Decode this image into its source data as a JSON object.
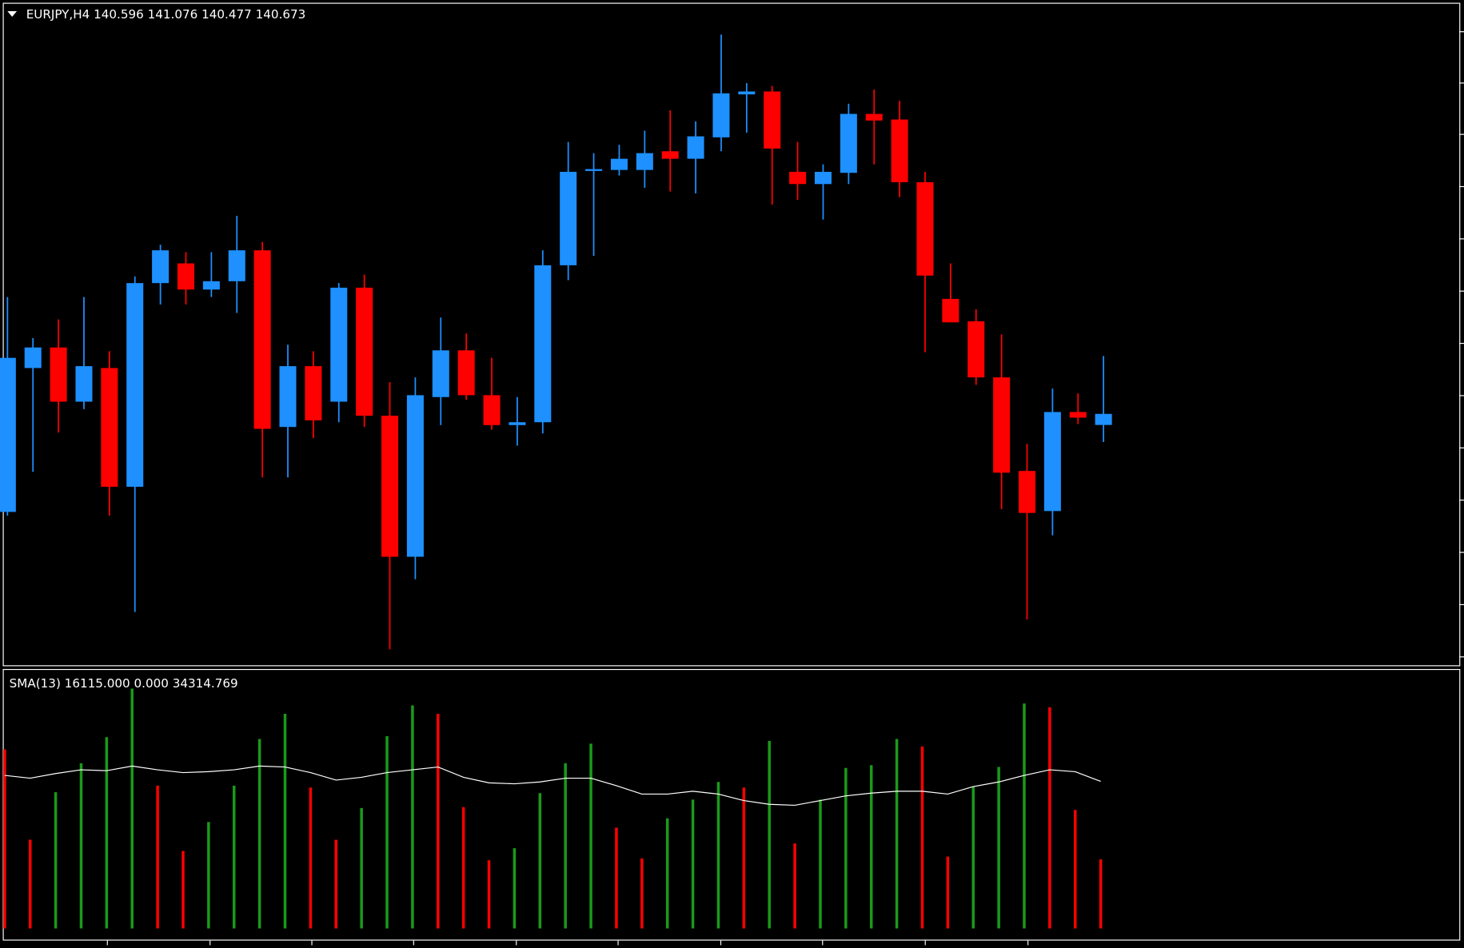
{
  "chart_data": [
    {
      "type": "candlestick",
      "title": "EURJPY,H4 140.596 141.076 140.477 140.673",
      "open": [
        139.991,
        140.992,
        141.135,
        140.758,
        140.992,
        140.166,
        141.583,
        141.72,
        141.538,
        141.596,
        141.811,
        140.582,
        141.005,
        140.758,
        141.551,
        140.66,
        139.679,
        140.79,
        141.115,
        140.803,
        140.595,
        140.615,
        141.707,
        142.363,
        142.37,
        142.37,
        142.5,
        142.448,
        142.597,
        142.896,
        142.916,
        142.357,
        142.272,
        142.35,
        142.76,
        142.721,
        142.285,
        141.473,
        141.317,
        140.927,
        140.276,
        139.997,
        140.686,
        140.596
      ],
      "high": [
        141.486,
        141.2,
        141.33,
        141.486,
        141.109,
        141.629,
        141.85,
        141.798,
        141.798,
        142.051,
        141.869,
        141.154,
        141.109,
        141.583,
        141.642,
        140.894,
        140.927,
        141.343,
        141.232,
        141.063,
        140.79,
        141.811,
        142.565,
        142.487,
        142.545,
        142.643,
        142.786,
        142.708,
        143.312,
        142.974,
        142.955,
        142.565,
        142.409,
        142.831,
        142.929,
        142.851,
        142.357,
        141.72,
        141.401,
        141.226,
        140.465,
        140.849,
        140.816,
        141.076
      ],
      "low": [
        139.965,
        140.27,
        140.543,
        140.706,
        139.965,
        139.295,
        141.434,
        141.434,
        141.486,
        141.375,
        140.231,
        140.231,
        140.504,
        140.615,
        140.582,
        139.035,
        139.523,
        140.595,
        140.771,
        140.563,
        140.452,
        140.537,
        141.603,
        141.772,
        142.331,
        142.246,
        142.22,
        142.207,
        142.5,
        142.63,
        142.129,
        142.162,
        142.025,
        142.272,
        142.409,
        142.181,
        141.102,
        141.31,
        140.875,
        140.01,
        139.243,
        139.828,
        140.602,
        140.477
      ],
      "close": [
        141.063,
        141.135,
        140.758,
        141.005,
        140.166,
        141.583,
        141.811,
        141.538,
        141.596,
        141.811,
        140.569,
        141.005,
        140.628,
        141.551,
        140.66,
        139.679,
        140.803,
        141.115,
        140.803,
        140.595,
        140.615,
        141.707,
        142.357,
        142.376,
        142.448,
        142.487,
        142.448,
        142.604,
        142.903,
        142.916,
        142.519,
        142.272,
        142.357,
        142.76,
        142.714,
        142.285,
        141.635,
        141.31,
        140.927,
        140.264,
        139.984,
        140.686,
        140.647,
        140.673
      ],
      "ylim": [
        138.924,
        143.533
      ],
      "up_color": "#1e90ff",
      "down_color": "#ff0000"
    },
    {
      "type": "volume",
      "title": "SMA(13) 16115.000 0.000 34314.769",
      "values": [
        41800,
        20700,
        31800,
        38550,
        44650,
        55970,
        33320,
        18080,
        24830,
        33320,
        44210,
        50090,
        32890,
        20690,
        28100,
        44870,
        52050,
        50090,
        28310,
        15900,
        18730,
        31580,
        38550,
        43120,
        23520,
        16330,
        25700,
        30060,
        34190,
        32890,
        43780,
        19820,
        30060,
        37460,
        38110,
        44210,
        42470,
        16770,
        33110,
        37680,
        52490,
        51620,
        27660,
        16115
      ],
      "sma": [
        35720,
        35070,
        36150,
        37030,
        36810,
        37900,
        37030,
        36370,
        36590,
        37030,
        37900,
        37680,
        36370,
        34630,
        35280,
        36370,
        37030,
        37680,
        35280,
        33980,
        33760,
        34190,
        35070,
        35070,
        33320,
        31360,
        31360,
        32020,
        31360,
        29840,
        28970,
        28750,
        29840,
        30930,
        31580,
        32020,
        32020,
        31360,
        33110,
        34190,
        35720,
        37030,
        36590,
        34314.769
      ],
      "ylim": [
        0,
        59900
      ],
      "up_color": "#1a9a1a",
      "down_color": "#ff0000",
      "line_color": "#ffffff"
    }
  ]
}
